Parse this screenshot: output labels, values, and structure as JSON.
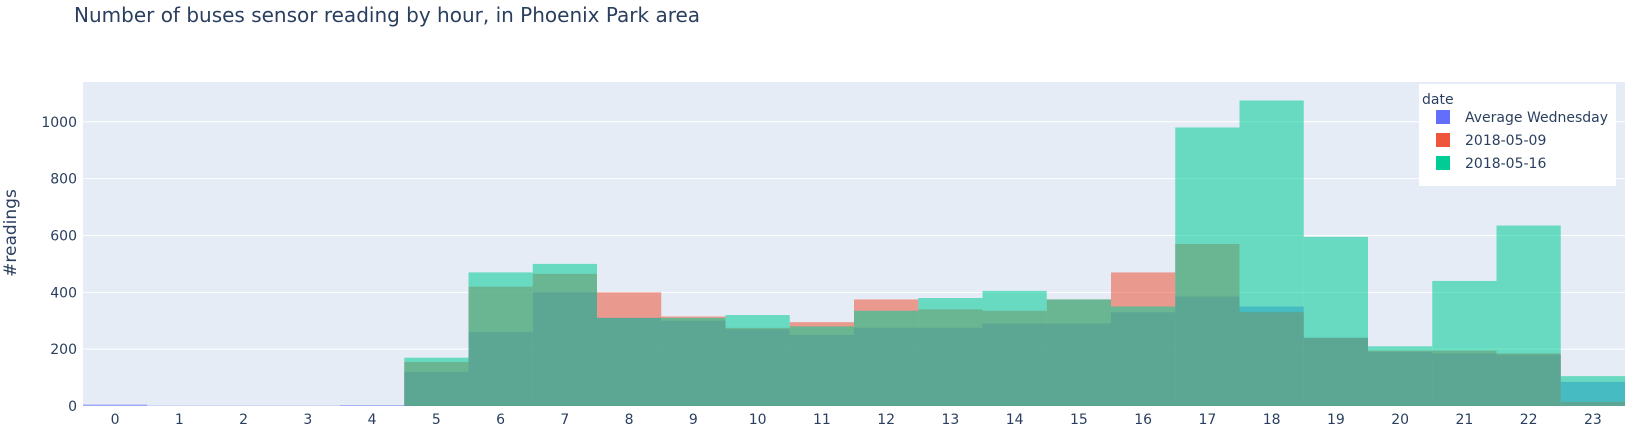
{
  "chart_data": {
    "type": "bar",
    "barmode": "overlay",
    "title": "Number of buses sensor reading by hour, in Phoenix Park area",
    "xlabel": "",
    "ylabel": "#readings",
    "categories": [
      0,
      1,
      2,
      3,
      4,
      5,
      6,
      7,
      8,
      9,
      10,
      11,
      12,
      13,
      14,
      15,
      16,
      17,
      18,
      19,
      20,
      21,
      22,
      23
    ],
    "x_tick_labels": [
      "0",
      "1",
      "2",
      "3",
      "4",
      "5",
      "6",
      "7",
      "8",
      "9",
      "10",
      "11",
      "12",
      "13",
      "14",
      "15",
      "16",
      "17",
      "18",
      "19",
      "20",
      "21",
      "22",
      "23"
    ],
    "y_ticks": [
      0,
      200,
      400,
      600,
      800,
      1000
    ],
    "y_tick_labels": [
      "0",
      "200",
      "400",
      "600",
      "800",
      "1000"
    ],
    "ylim": [
      0,
      1140
    ],
    "grid": true,
    "legend": {
      "title": "date",
      "position": "top-right"
    },
    "series": [
      {
        "name": "Average Wednesday",
        "color": "#636efa",
        "values": [
          5,
          1,
          1,
          1,
          3,
          120,
          260,
          400,
          310,
          300,
          270,
          250,
          275,
          275,
          290,
          290,
          330,
          385,
          350,
          240,
          190,
          185,
          180,
          85
        ]
      },
      {
        "name": "2018-05-09",
        "color": "#ef553b",
        "values": [
          0,
          0,
          0,
          0,
          0,
          155,
          420,
          465,
          400,
          315,
          275,
          295,
          375,
          340,
          335,
          375,
          470,
          570,
          330,
          240,
          195,
          195,
          185,
          15
        ]
      },
      {
        "name": "2018-05-16",
        "color": "#00cc96",
        "values": [
          0,
          0,
          0,
          0,
          0,
          170,
          470,
          500,
          310,
          310,
          320,
          280,
          335,
          380,
          405,
          375,
          350,
          980,
          1075,
          595,
          210,
          440,
          635,
          105
        ]
      }
    ]
  }
}
